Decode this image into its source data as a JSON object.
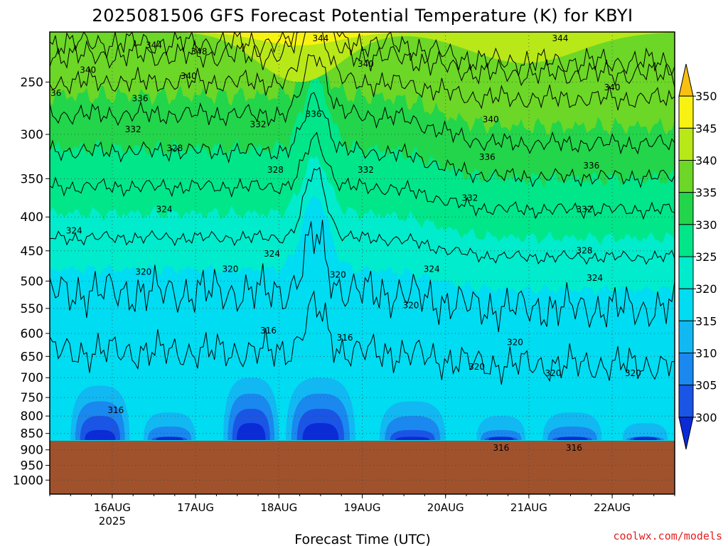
{
  "chart_data": {
    "type": "heatmap",
    "title": "2025081506 GFS Forecast Potential Temperature (K) for KBYI",
    "xlabel": "Forecast Time (UTC)",
    "ylabel": "",
    "credit": "coolwx.com/models",
    "x_ticks": [
      {
        "label": "16AUG",
        "sub": "2025",
        "date": "2025-08-16 00Z"
      },
      {
        "label": "17AUG",
        "sub": "",
        "date": "2025-08-17 00Z"
      },
      {
        "label": "18AUG",
        "sub": "",
        "date": "2025-08-18 00Z"
      },
      {
        "label": "19AUG",
        "sub": "",
        "date": "2025-08-19 00Z"
      },
      {
        "label": "20AUG",
        "sub": "",
        "date": "2025-08-20 00Z"
      },
      {
        "label": "21AUG",
        "sub": "",
        "date": "2025-08-21 00Z"
      },
      {
        "label": "22AUG",
        "sub": "",
        "date": "2025-08-22 00Z"
      }
    ],
    "xlim": [
      "2025-08-15 06Z",
      "2025-08-22 18Z"
    ],
    "y_scale": "log-pressure",
    "y_ticks": [
      250,
      300,
      350,
      400,
      450,
      500,
      550,
      600,
      650,
      700,
      750,
      800,
      850,
      900,
      950,
      1000
    ],
    "ylim": [
      1050,
      210
    ],
    "grid": true,
    "surface_pressure_hPa": 870,
    "colorbar": {
      "levels": [
        300,
        305,
        310,
        315,
        320,
        325,
        330,
        335,
        340,
        345,
        350
      ],
      "labels": [
        "300",
        "305",
        "310",
        "315",
        "320",
        "325",
        "330",
        "335",
        "340",
        "345",
        "350"
      ],
      "colors": [
        "#0a2bd6",
        "#1a55e6",
        "#1a88ee",
        "#12b8f2",
        "#00dcf2",
        "#00eccc",
        "#00e689",
        "#22d54a",
        "#6cd726",
        "#b8e818",
        "#f8f212",
        "#f8c010"
      ],
      "extend": "both",
      "position": "right"
    },
    "contour_levels": [
      316,
      320,
      324,
      328,
      332,
      336,
      340,
      344,
      348
    ],
    "contour_labels": [
      {
        "text": "344",
        "date": "2025-08-16 12Z",
        "p": 220
      },
      {
        "text": "348",
        "date": "2025-08-17 01Z",
        "p": 225
      },
      {
        "text": "344",
        "date": "2025-08-18 12Z",
        "p": 215
      },
      {
        "text": "344",
        "date": "2025-08-21 09Z",
        "p": 215
      },
      {
        "text": "340",
        "date": "2025-08-15 17Z",
        "p": 240
      },
      {
        "text": "340",
        "date": "2025-08-16 22Z",
        "p": 245
      },
      {
        "text": "340",
        "date": "2025-08-19 01Z",
        "p": 235
      },
      {
        "text": "340",
        "date": "2025-08-22 00Z",
        "p": 255
      },
      {
        "text": "336",
        "date": "2025-08-15 07Z",
        "p": 260
      },
      {
        "text": "336",
        "date": "2025-08-16 08Z",
        "p": 265
      },
      {
        "text": "336",
        "date": "2025-08-18 10Z",
        "p": 280
      },
      {
        "text": "340",
        "date": "2025-08-20 13Z",
        "p": 285
      },
      {
        "text": "332",
        "date": "2025-08-16 06Z",
        "p": 295
      },
      {
        "text": "332",
        "date": "2025-08-17 18Z",
        "p": 290
      },
      {
        "text": "328",
        "date": "2025-08-16 18Z",
        "p": 315
      },
      {
        "text": "336",
        "date": "2025-08-20 12Z",
        "p": 325
      },
      {
        "text": "328",
        "date": "2025-08-17 23Z",
        "p": 340
      },
      {
        "text": "332",
        "date": "2025-08-19 01Z",
        "p": 340
      },
      {
        "text": "336",
        "date": "2025-08-21 18Z",
        "p": 335
      },
      {
        "text": "332",
        "date": "2025-08-20 07Z",
        "p": 375
      },
      {
        "text": "332",
        "date": "2025-08-21 16Z",
        "p": 390
      },
      {
        "text": "324",
        "date": "2025-08-16 15Z",
        "p": 390
      },
      {
        "text": "324",
        "date": "2025-08-15 13Z",
        "p": 420
      },
      {
        "text": "324",
        "date": "2025-08-17 22Z",
        "p": 455
      },
      {
        "text": "328",
        "date": "2025-08-21 16Z",
        "p": 450
      },
      {
        "text": "320",
        "date": "2025-08-16 09Z",
        "p": 485
      },
      {
        "text": "320",
        "date": "2025-08-17 10Z",
        "p": 480
      },
      {
        "text": "320",
        "date": "2025-08-18 17Z",
        "p": 490
      },
      {
        "text": "324",
        "date": "2025-08-19 20Z",
        "p": 480
      },
      {
        "text": "324",
        "date": "2025-08-21 19Z",
        "p": 495
      },
      {
        "text": "320",
        "date": "2025-08-19 14Z",
        "p": 545
      },
      {
        "text": "316",
        "date": "2025-08-17 21Z",
        "p": 595
      },
      {
        "text": "316",
        "date": "2025-08-18 19Z",
        "p": 610
      },
      {
        "text": "320",
        "date": "2025-08-20 20Z",
        "p": 620
      },
      {
        "text": "320",
        "date": "2025-08-20 09Z",
        "p": 675
      },
      {
        "text": "320",
        "date": "2025-08-21 07Z",
        "p": 690
      },
      {
        "text": "320",
        "date": "2025-08-22 06Z",
        "p": 690
      },
      {
        "text": "316",
        "date": "2025-08-16 01Z",
        "p": 785
      },
      {
        "text": "316",
        "date": "2025-08-20 16Z",
        "p": 895
      },
      {
        "text": "316",
        "date": "2025-08-21 13Z",
        "p": 895
      }
    ]
  }
}
